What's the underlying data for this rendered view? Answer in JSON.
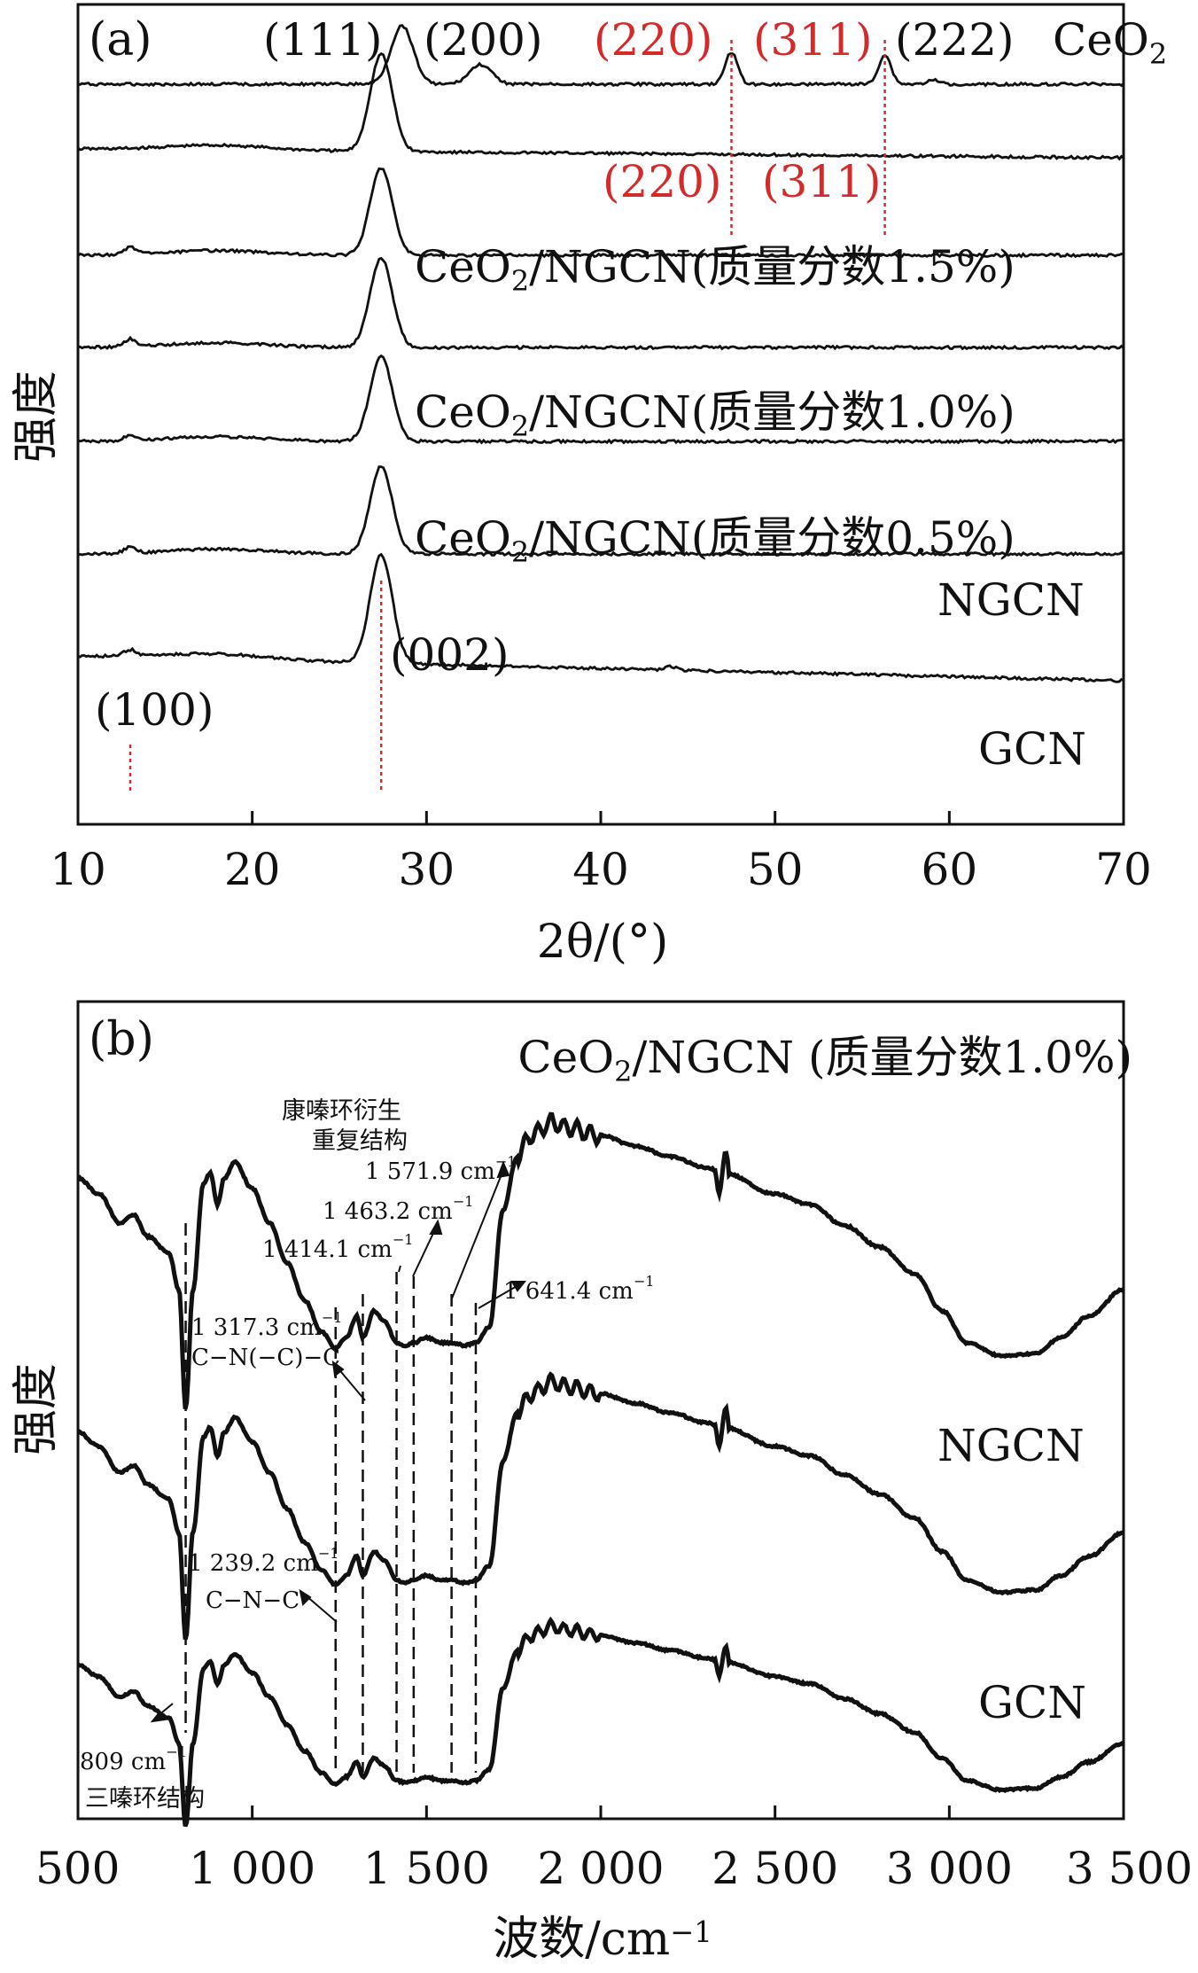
{
  "colors": {
    "ink": "#111111",
    "marker": "#d42a2a",
    "background": "#ffffff"
  },
  "chart_data": [
    {
      "type": "line",
      "panel_label": "(a)",
      "xlabel": "2θ/(°)",
      "ylabel": "强度",
      "xlim": [
        10,
        70
      ],
      "xticks": [
        "10",
        "20",
        "30",
        "40",
        "50",
        "60",
        "70"
      ],
      "curve_labels": [
        "CeO2",
        "CeO2/NGCN(质量分数1.5%)",
        "CeO2/NGCN(质量分数1.0%)",
        "CeO2/NGCN(质量分数0.5%)",
        "NGCN",
        "GCN"
      ],
      "series": [
        {
          "name": "CeO2",
          "peaks": [
            {
              "x": 28.6,
              "h": 0.6
            },
            {
              "x": 33.1,
              "h": 0.2
            },
            {
              "x": 47.5,
              "h": 0.33
            },
            {
              "x": 56.3,
              "h": 0.3
            },
            {
              "x": 59.1,
              "h": 0.04
            }
          ]
        },
        {
          "name": "",
          "peaks": [
            {
              "x": 27.4,
              "h": 1.0
            }
          ]
        },
        {
          "name": "CeO2/NGCN(质量分数1.5%)",
          "peaks": [
            {
              "x": 27.4,
              "h": 0.95
            },
            {
              "x": 13.0,
              "h": 0.08
            }
          ]
        },
        {
          "name": "CeO2/NGCN(质量分数1.0%)",
          "peaks": [
            {
              "x": 27.4,
              "h": 0.95
            },
            {
              "x": 13.0,
              "h": 0.08
            }
          ]
        },
        {
          "name": "CeO2/NGCN(质量分数0.5%)",
          "peaks": [
            {
              "x": 27.4,
              "h": 0.9
            },
            {
              "x": 13.0,
              "h": 0.06
            }
          ]
        },
        {
          "name": "NGCN",
          "peaks": [
            {
              "x": 27.4,
              "h": 0.9
            },
            {
              "x": 13.0,
              "h": 0.06
            }
          ]
        },
        {
          "name": "GCN",
          "peaks": [
            {
              "x": 27.4,
              "h": 1.0
            },
            {
              "x": 13.0,
              "h": 0.06
            },
            {
              "x": 44.0,
              "h": 0.03
            }
          ]
        }
      ],
      "peak_labels": [
        {
          "text": "(111)",
          "x": 28.6,
          "color": "black"
        },
        {
          "text": "(200)",
          "x": 33.1,
          "color": "black"
        },
        {
          "text": "(220)",
          "x": 47.5,
          "color": "red"
        },
        {
          "text": "(311)",
          "x": 56.3,
          "color": "red"
        },
        {
          "text": "(222)",
          "x": 59.1,
          "color": "black"
        },
        {
          "text": "(220)",
          "x": 47.5,
          "color": "red"
        },
        {
          "text": "(311)",
          "x": 56.3,
          "color": "red"
        },
        {
          "text": "(002)",
          "x": 27.4,
          "color": "black"
        },
        {
          "text": "(100)",
          "x": 13.0,
          "color": "black"
        }
      ],
      "reference_lines": [
        13.0,
        27.4,
        47.5,
        56.3
      ]
    },
    {
      "type": "line",
      "panel_label": "(b)",
      "xlabel": "波数/cm−1",
      "ylabel": "强度",
      "xlim": [
        500,
        3500
      ],
      "xticks": [
        "500",
        "1 000",
        "1 500",
        "2 000",
        "2 500",
        "3 000",
        "3 500"
      ],
      "curve_labels": [
        "CeO2/NGCN (质量分数1.0%)",
        "NGCN",
        "GCN"
      ],
      "series": [
        {
          "name": "CeO2/NGCN(质量分数1.0%)"
        },
        {
          "name": "NGCN"
        },
        {
          "name": "GCN"
        }
      ],
      "band_positions": [
        809,
        1239.2,
        1317.3,
        1414.1,
        1463.2,
        1571.9,
        1641.4
      ],
      "annotations": [
        {
          "text": "康嗪环衍生",
          "x": 1340
        },
        {
          "text": "重复结构",
          "x": 1340
        },
        {
          "text": "1 571.9 cm−1",
          "x": 1571.9
        },
        {
          "text": "1 463.2 cm−1",
          "x": 1463.2
        },
        {
          "text": "1 414.1 cm−1",
          "x": 1414.1
        },
        {
          "text": "1 641.4 cm−1",
          "x": 1641.4
        },
        {
          "text": "1 317.3 cm−1",
          "x": 1317.3
        },
        {
          "text": "C−N(−C)−C",
          "x": 1317.3
        },
        {
          "text": "1 239.2 cm−1",
          "x": 1239.2
        },
        {
          "text": "C−N−C",
          "x": 1239.2
        },
        {
          "text": "809 cm−1",
          "x": 809
        },
        {
          "text": "三嗪环结构",
          "x": 809
        }
      ]
    }
  ]
}
